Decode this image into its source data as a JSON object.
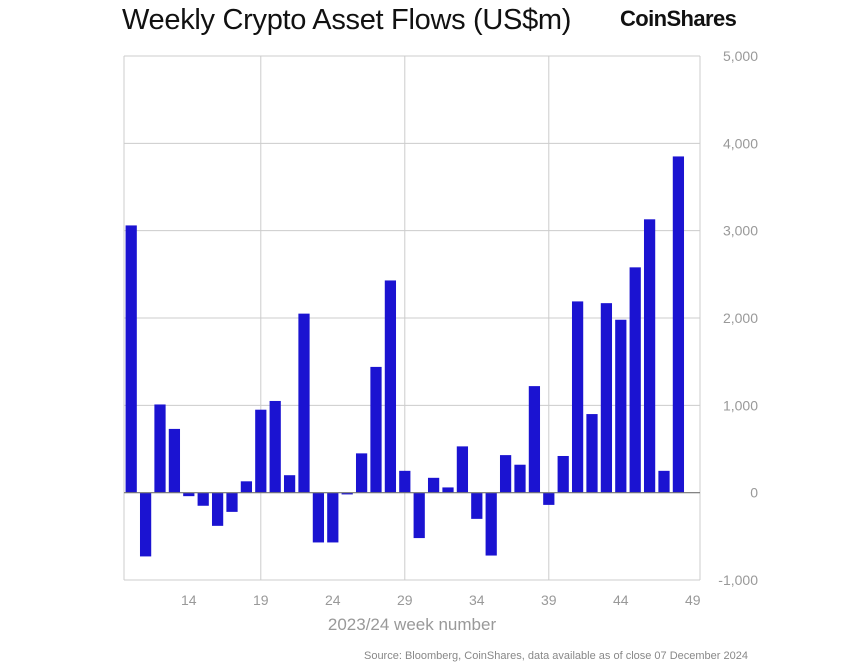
{
  "header": {
    "title": "Weekly Crypto Asset Flows (US$m)",
    "brand": "CoinShares"
  },
  "footer": {
    "source": "Source: Bloomberg, CoinShares, data available as of close 07 December 2024"
  },
  "colors": {
    "bar": "#1b13d1",
    "grid": "#cccccc",
    "zero_line": "#777777",
    "tick_text": "#999999"
  },
  "chart_data": {
    "type": "bar",
    "title": "Weekly Crypto Asset Flows (US$m)",
    "xlabel": "2023/24 week number",
    "ylabel": "",
    "ylim": [
      -1000,
      5000
    ],
    "y_ticks": [
      -1000,
      0,
      1000,
      2000,
      3000,
      4000,
      5000
    ],
    "y_tick_labels": [
      "-1,000",
      "0",
      "1,000",
      "2,000",
      "3,000",
      "4,000",
      "5,000"
    ],
    "x_tick_labels": [
      "14",
      "19",
      "24",
      "29",
      "34",
      "39",
      "44",
      "49"
    ],
    "x_gridlines_at": [
      19,
      29,
      39
    ],
    "grid": true,
    "legend": "none",
    "categories": [
      10,
      11,
      12,
      13,
      14,
      15,
      16,
      17,
      18,
      19,
      20,
      21,
      22,
      23,
      24,
      25,
      26,
      27,
      28,
      29,
      30,
      31,
      32,
      33,
      34,
      35,
      36,
      37,
      38,
      39,
      40,
      41,
      42,
      43,
      44,
      45,
      46,
      47,
      48,
      49
    ],
    "values": [
      3060,
      -730,
      1010,
      730,
      -40,
      -150,
      -380,
      -220,
      130,
      950,
      1050,
      200,
      2050,
      -570,
      -570,
      -20,
      450,
      1440,
      2430,
      250,
      -520,
      170,
      60,
      530,
      -300,
      -720,
      430,
      320,
      1220,
      -140,
      420,
      2190,
      900,
      2170,
      1980,
      2580,
      3130,
      250,
      3850,
      0
    ]
  }
}
